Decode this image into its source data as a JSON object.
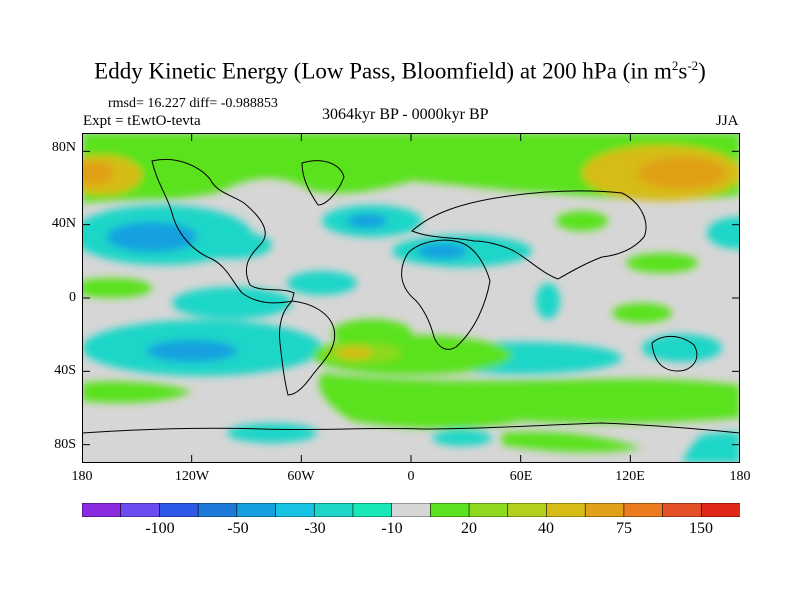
{
  "title": {
    "main": "Eddy Kinetic Energy (Low Pass, Bloomfield) at 200 hPa (in m",
    "sup1": "2",
    "mid": "s",
    "sup2": "-2",
    "end": ")"
  },
  "stats": "rmsd= 16.227 diff= -0.988853",
  "experiment": "Expt = tEwtO-tevta",
  "period": "3064kyr BP - 0000kyr BP",
  "season": "JJA",
  "y_axis": {
    "labels": [
      "80N",
      "40N",
      "0",
      "40S",
      "80S"
    ],
    "values": [
      80,
      40,
      0,
      -40,
      -80
    ]
  },
  "x_axis": {
    "labels": [
      "180",
      "120W",
      "60W",
      "0",
      "60E",
      "120E",
      "180"
    ],
    "values": [
      -180,
      -120,
      -60,
      0,
      60,
      120,
      180
    ]
  },
  "colorbar": {
    "colors": [
      "#8a2be2",
      "#6a4cf0",
      "#2e58e6",
      "#1e7ad8",
      "#16a0e0",
      "#18c3e4",
      "#1ed6c8",
      "#18e8b8",
      "#d6d6d6",
      "#5ae21e",
      "#8ed81e",
      "#b4d01e",
      "#d6bc14",
      "#e0a018",
      "#ec7a1e",
      "#e45028",
      "#e02818"
    ],
    "labels": [
      "-100",
      "-50",
      "-30",
      "-10",
      "20",
      "40",
      "75",
      "150"
    ]
  }
}
